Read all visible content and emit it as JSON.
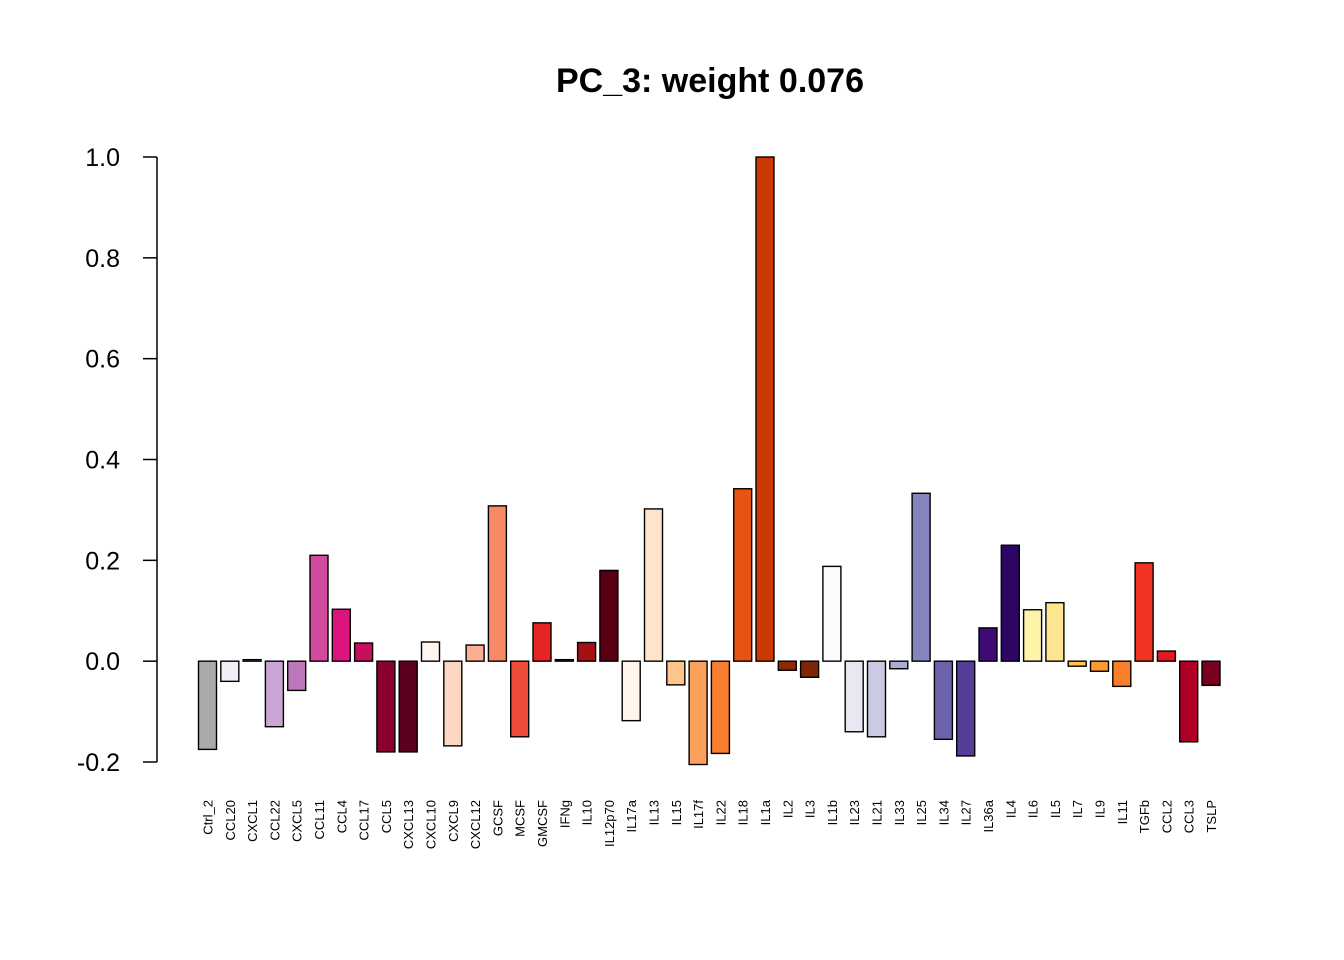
{
  "chart_data": {
    "type": "bar",
    "title": "PC_3: weight 0.076",
    "xlabel": "",
    "ylabel": "",
    "ylim": [
      -0.2,
      1.0
    ],
    "yticks": [
      -0.2,
      0.0,
      0.2,
      0.4,
      0.6,
      0.8,
      1.0
    ],
    "ytick_labels": [
      "-0.2",
      "0.0",
      "0.2",
      "0.4",
      "0.6",
      "0.8",
      "1.0"
    ],
    "grid": false,
    "categories": [
      "Ctrl_2",
      "CCL20",
      "CXCL1",
      "CCL22",
      "CXCL5",
      "CCL11",
      "CCL4",
      "CCL17",
      "CCL5",
      "CXCL13",
      "CXCL10",
      "CXCL9",
      "CXCL12",
      "GCSF",
      "MCSF",
      "GMCSF",
      "IFNg",
      "IL10",
      "IL12p70",
      "IL17a",
      "IL13",
      "IL15",
      "IL17f",
      "IL22",
      "IL18",
      "IL1a",
      "IL2",
      "IL3",
      "IL1b",
      "IL23",
      "IL21",
      "IL33",
      "IL25",
      "IL34",
      "IL27",
      "IL36a",
      "IL4",
      "IL6",
      "IL5",
      "IL7",
      "IL9",
      "IL11",
      "TGFb",
      "CCL2",
      "CCL3",
      "TSLP"
    ],
    "values": [
      -0.175,
      -0.04,
      0.003,
      -0.13,
      -0.058,
      0.21,
      0.103,
      0.036,
      -0.18,
      -0.18,
      0.038,
      -0.168,
      0.032,
      0.308,
      -0.15,
      0.076,
      0.003,
      0.037,
      0.18,
      -0.118,
      0.302,
      -0.047,
      -0.205,
      -0.183,
      0.342,
      1.0,
      -0.018,
      -0.032,
      0.188,
      -0.14,
      -0.15,
      -0.015,
      0.333,
      -0.155,
      -0.188,
      0.066,
      0.23,
      0.102,
      0.116,
      -0.01,
      -0.02,
      -0.05,
      0.195,
      0.02,
      -0.16,
      -0.048
    ],
    "colors": [
      "#AAAAAA",
      "#F2EEF6",
      "#F0EAF5",
      "#C9A6D3",
      "#BE77BC",
      "#D24A9C",
      "#DD1480",
      "#C6105F",
      "#8A0031",
      "#5C0020",
      "#FFF5F0",
      "#FDD6C4",
      "#FCAE91",
      "#F98866",
      "#EF4B3B",
      "#E42522",
      "#B11217",
      "#A50F15",
      "#580012",
      "#FFF5EB",
      "#FEE4CB",
      "#FDC48C",
      "#FDA05B",
      "#F87D2F",
      "#E55411",
      "#CC3802",
      "#8F2803",
      "#7E2606",
      "#FCFBFD",
      "#E9E7F2",
      "#CACBE3",
      "#ABACD1",
      "#8684BC",
      "#6B64AD",
      "#563E98",
      "#3F0A73",
      "#2B0763",
      "#FFF3A9",
      "#FEE691",
      "#FEC44F",
      "#FE9A2E",
      "#F97E2A",
      "#F03523",
      "#E11A22",
      "#AE0026",
      "#7A0020"
    ]
  }
}
